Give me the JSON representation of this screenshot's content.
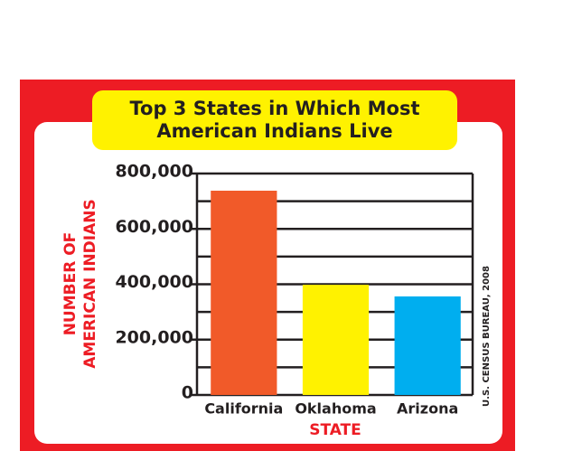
{
  "chart_data": {
    "type": "bar",
    "title": [
      "Top 3 States in Which Most",
      "American Indians Live"
    ],
    "categories": [
      "California",
      "Oklahoma",
      "Arizona"
    ],
    "values": [
      738000,
      398000,
      356000
    ],
    "colors": [
      "#f15a29",
      "#fff200",
      "#00aeef"
    ],
    "ylim": [
      0,
      800000
    ],
    "yticks": [
      {
        "value": 0,
        "label": "0"
      },
      {
        "value": 200000,
        "label": "200,000"
      },
      {
        "value": 400000,
        "label": "400,000"
      },
      {
        "value": 600000,
        "label": "600,000"
      },
      {
        "value": 800000,
        "label": "800,000"
      }
    ],
    "minor_yticks": [
      100000,
      300000,
      500000,
      700000
    ],
    "grid": true,
    "ylabel": [
      "NUMBER OF",
      "AMERICAN INDIANS"
    ],
    "xlabel": "STATE",
    "source": "U.S. CENSUS BUREAU, 2008"
  }
}
